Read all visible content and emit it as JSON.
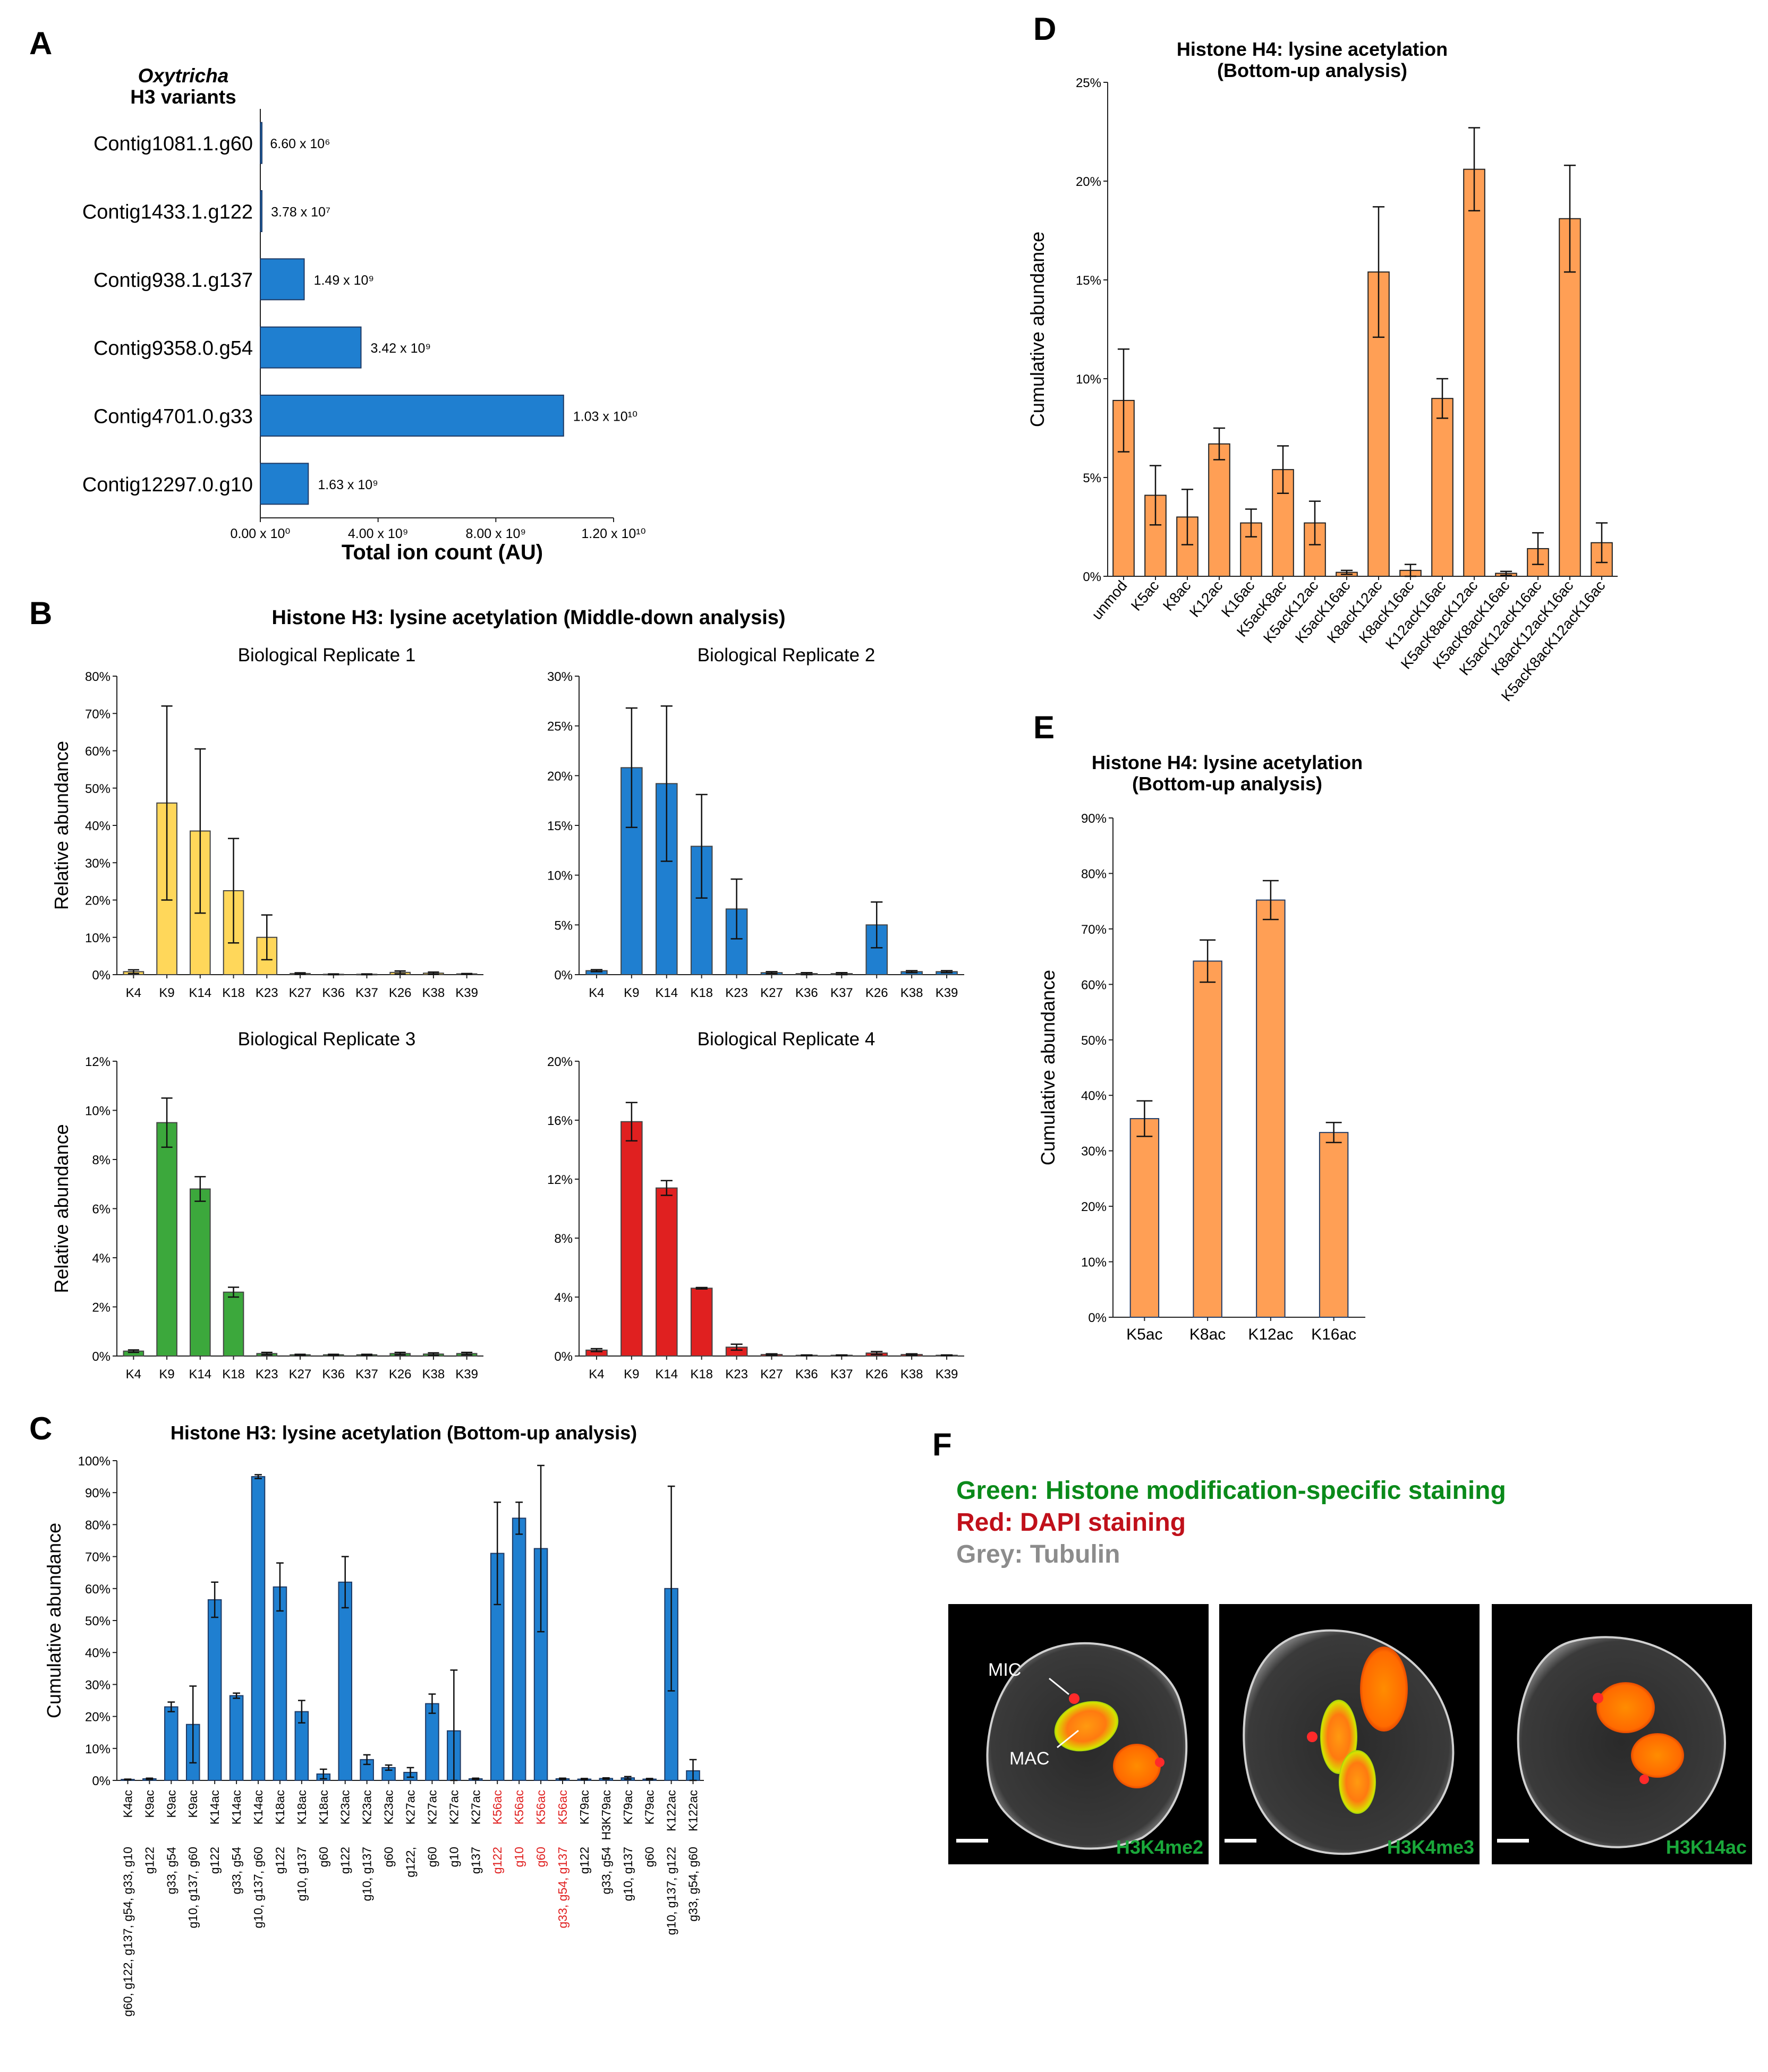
{
  "colors": {
    "blue": "#1f7fd0",
    "yellow": "#ffd75a",
    "green": "#3ca83c",
    "red": "#e02020",
    "orange": "#ff9f55",
    "bar_stroke": "#1f3a64",
    "dark_green": "#0a8a1a",
    "dark_red": "#c0101a",
    "grey": "#8c8c8c"
  },
  "panels": {
    "A": {
      "label": "A"
    },
    "B": {
      "label": "B"
    },
    "C": {
      "label": "C"
    },
    "D": {
      "label": "D"
    },
    "E": {
      "label": "E"
    },
    "F": {
      "label": "F",
      "legend": [
        {
          "text": "Green: Histone modification-specific staining",
          "color": "#0a8a1a"
        },
        {
          "text": "Red: DAPI staining",
          "color": "#c0101a"
        },
        {
          "text": "Grey: Tubulin",
          "color": "#8c8c8c"
        }
      ],
      "images": [
        {
          "mark": "H3K4me2"
        },
        {
          "mark": "H3K4me3"
        },
        {
          "mark": "H3K14ac"
        }
      ],
      "annotations": [
        "MIC",
        "MAC"
      ]
    }
  },
  "chart_data": [
    {
      "id": "A",
      "type": "bar",
      "orientation": "horizontal",
      "title_italic": "Oxytricha",
      "title": "H3 variants",
      "xlabel": "Total ion count (AU)",
      "categories": [
        "Contig1081.1.g60",
        "Contig1433.1.g122",
        "Contig938.1.g137",
        "Contig9358.0.g54",
        "Contig4701.0.g33",
        "Contig12297.0.g10"
      ],
      "values": [
        6600000,
        37800000,
        1490000000,
        3420000000,
        10300000000,
        1630000000
      ],
      "value_labels": [
        "6.60 x 10⁶",
        "3.78 x 10⁷",
        "1.49 x 10⁹",
        "3.42 x 10⁹",
        "1.03 x 10¹⁰",
        "1.63 x 10⁹"
      ],
      "xticks": [
        "0.00 x 10⁰",
        "4.00 x 10⁹",
        "8.00 x 10⁹",
        "1.20 x 10¹⁰"
      ],
      "xlim": [
        0,
        12000000000
      ]
    },
    {
      "id": "B",
      "type": "bar",
      "title": "Histone H3: lysine acetylation (Middle-down analysis)",
      "ylabel": "Relative abundance",
      "categories": [
        "K4",
        "K9",
        "K14",
        "K18",
        "K23",
        "K27",
        "K36",
        "K37",
        "K26",
        "K38",
        "K39"
      ],
      "subplots": [
        {
          "name": "Biological Replicate 1",
          "color": "yellow",
          "ylim": [
            0,
            80
          ],
          "yticks": [
            0,
            10,
            20,
            30,
            40,
            50,
            60,
            70,
            80
          ],
          "values": [
            0.8,
            46,
            38.5,
            22.5,
            10,
            0.3,
            0.1,
            0.1,
            0.6,
            0.4,
            0.2
          ],
          "errors": [
            0.5,
            26,
            22,
            14,
            6,
            0.2,
            0.1,
            0.1,
            0.4,
            0.3,
            0.1
          ]
        },
        {
          "name": "Biological Replicate 2",
          "color": "blue",
          "ylim": [
            0,
            30
          ],
          "yticks": [
            0,
            5,
            10,
            15,
            20,
            25,
            30
          ],
          "values": [
            0.4,
            20.8,
            19.2,
            12.9,
            6.6,
            0.2,
            0.1,
            0.1,
            5,
            0.3,
            0.3
          ],
          "errors": [
            0.1,
            6,
            7.8,
            5.2,
            3,
            0.1,
            0.1,
            0.1,
            2.3,
            0.1,
            0.1
          ]
        },
        {
          "name": "Biological Replicate 3",
          "color": "green",
          "ylim": [
            0,
            12
          ],
          "yticks": [
            0,
            2,
            4,
            6,
            8,
            10,
            12
          ],
          "values": [
            0.2,
            9.5,
            6.8,
            2.6,
            0.1,
            0.05,
            0.05,
            0.05,
            0.1,
            0.08,
            0.1
          ],
          "errors": [
            0.05,
            1.0,
            0.5,
            0.2,
            0.05,
            0.02,
            0.02,
            0.02,
            0.05,
            0.05,
            0.05
          ]
        },
        {
          "name": "Biological Replicate 4",
          "color": "red",
          "ylim": [
            0,
            20
          ],
          "yticks": [
            0,
            4,
            8,
            12,
            16,
            20
          ],
          "values": [
            0.4,
            15.9,
            11.4,
            4.6,
            0.6,
            0.1,
            0.05,
            0.05,
            0.2,
            0.1,
            0.05
          ],
          "errors": [
            0.1,
            1.3,
            0.5,
            0.05,
            0.2,
            0.05,
            0.02,
            0.02,
            0.1,
            0.05,
            0.02
          ]
        }
      ]
    },
    {
      "id": "C",
      "type": "bar",
      "title": "Histone H3: lysine acetylation (Bottom-up analysis)",
      "ylabel": "Cumulative  abundance",
      "ylim": [
        0,
        100
      ],
      "yticks": [
        0,
        10,
        20,
        30,
        40,
        50,
        60,
        70,
        80,
        90,
        100
      ],
      "categories": [
        "K4ac",
        "K9ac",
        "K9ac",
        "K9ac",
        "K14ac",
        "K14ac",
        "K14ac",
        "K18ac",
        "K18ac",
        "K18ac",
        "K23ac",
        "K23ac",
        "K23ac",
        "K27ac",
        "K27ac",
        "K27ac",
        "K27ac",
        "K56ac",
        "K56ac",
        "K56ac",
        "K56ac",
        "K79ac",
        "H3K79ac",
        "K79ac",
        "K79ac",
        "K122ac",
        "K122ac"
      ],
      "variants": [
        "g60, g122, g137, g54, g33, g10",
        "g122",
        "g33, g54",
        "g10,  g137, g60",
        "g122",
        "g33, g54",
        "g10,  g137, g60",
        "g122",
        "g10, g137",
        "g60",
        "g122",
        "g10, g137",
        "g60",
        "g122,",
        "g60",
        "g10",
        "g137",
        "g122",
        "g10",
        "g60",
        "g33, g54, g137",
        "g122",
        "g33, g54",
        "g10, g137",
        "g60",
        "g10, g137, g122",
        "g33, g54, g60"
      ],
      "highlight_indices": [
        17,
        18,
        19,
        20
      ],
      "highlight_color": "#e02020",
      "values": [
        0.3,
        0.5,
        23,
        17.5,
        56.5,
        26.5,
        95,
        60.5,
        21.5,
        2,
        62,
        6.5,
        4,
        2.5,
        24,
        15.5,
        0.5,
        71,
        82,
        72.5,
        0.5,
        0.4,
        0.6,
        0.8,
        0.4,
        60,
        3
      ],
      "errors": [
        0.1,
        0.2,
        1.5,
        12,
        5.5,
        0.8,
        0.6,
        7.5,
        3.5,
        1.5,
        8,
        1.5,
        0.8,
        1.5,
        3,
        19,
        0.2,
        16,
        5,
        26,
        0.2,
        0.2,
        0.2,
        0.4,
        0.2,
        32,
        3.5
      ]
    },
    {
      "id": "D",
      "type": "bar",
      "title": "Histone H4: lysine acetylation",
      "subtitle": "(Bottom-up analysis)",
      "ylabel": "Cumulative abundance",
      "ylim": [
        0,
        25
      ],
      "yticks": [
        0,
        5,
        10,
        15,
        20,
        25
      ],
      "categories": [
        "unmod",
        "K5ac",
        "K8ac",
        "K12ac",
        "K16ac",
        "K5acK8ac",
        "K5acK12ac",
        "K5acK16ac",
        "K8acK12ac",
        "K8acK16ac",
        "K12acK16ac",
        "K5acK8acK12ac",
        "K5acK8acK16ac",
        "K5acK12acK16ac",
        "K8acK12acK16ac",
        "K5acK8acK12acK16ac"
      ],
      "values": [
        8.9,
        4.1,
        3.0,
        6.7,
        2.7,
        5.4,
        2.7,
        0.2,
        15.4,
        0.3,
        9.0,
        20.6,
        0.15,
        1.4,
        18.1,
        1.7
      ],
      "errors": [
        2.6,
        1.5,
        1.4,
        0.8,
        0.7,
        1.2,
        1.1,
        0.1,
        3.3,
        0.3,
        1.0,
        2.1,
        0.1,
        0.8,
        2.7,
        1.0
      ]
    },
    {
      "id": "E",
      "type": "bar",
      "title": "Histone H4: lysine acetylation",
      "subtitle": "(Bottom-up analysis)",
      "ylabel": "Cumulative abundance",
      "ylim": [
        0,
        90
      ],
      "yticks": [
        0,
        10,
        20,
        30,
        40,
        50,
        60,
        70,
        80,
        90
      ],
      "categories": [
        "K5ac",
        "K8ac",
        "K12ac",
        "K16ac"
      ],
      "values": [
        35.8,
        64.2,
        75.2,
        33.3
      ],
      "errors": [
        3.2,
        3.8,
        3.5,
        1.8
      ]
    }
  ]
}
